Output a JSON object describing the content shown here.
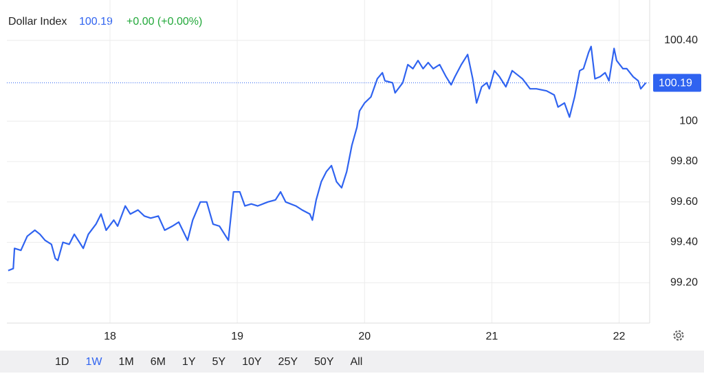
{
  "header": {
    "title": "Dollar Index",
    "change": "+0.00 (+0.00%)"
  },
  "chart_data": {
    "type": "line",
    "color": "#2f63f0",
    "current_value": 100.19,
    "x": [
      17.2,
      17.24,
      17.25,
      17.3,
      17.35,
      17.41,
      17.45,
      17.49,
      17.54,
      17.57,
      17.59,
      17.63,
      17.68,
      17.72,
      17.77,
      17.79,
      17.83,
      17.89,
      17.93,
      17.97,
      18.03,
      18.06,
      18.12,
      18.16,
      18.22,
      18.27,
      18.32,
      18.38,
      18.43,
      18.49,
      18.54,
      18.61,
      18.65,
      18.71,
      18.76,
      18.81,
      18.86,
      18.93,
      18.97,
      19.02,
      19.06,
      19.11,
      19.16,
      19.24,
      19.3,
      19.34,
      19.38,
      19.46,
      19.51,
      19.57,
      19.59,
      19.62,
      19.66,
      19.7,
      19.74,
      19.78,
      19.82,
      19.86,
      19.9,
      19.94,
      19.96,
      20.0,
      20.05,
      20.1,
      20.14,
      20.16,
      20.22,
      20.24,
      20.3,
      20.34,
      20.38,
      20.42,
      20.46,
      20.5,
      20.54,
      20.59,
      20.64,
      20.68,
      20.71,
      20.76,
      20.81,
      20.85,
      20.88,
      20.92,
      20.96,
      20.98,
      21.02,
      21.06,
      21.11,
      21.16,
      21.2,
      21.24,
      21.3,
      21.35,
      21.43,
      21.49,
      21.52,
      21.57,
      21.61,
      21.65,
      21.69,
      21.72,
      21.76,
      21.78,
      21.81,
      21.85,
      21.89,
      21.92,
      21.96,
      21.98,
      22.03,
      22.06,
      22.11,
      22.15,
      22.17,
      22.21
    ],
    "values": [
      99.26,
      99.27,
      99.37,
      99.36,
      99.43,
      99.46,
      99.44,
      99.41,
      99.39,
      99.32,
      99.31,
      99.4,
      99.39,
      99.44,
      99.39,
      99.37,
      99.44,
      99.49,
      99.54,
      99.46,
      99.51,
      99.48,
      99.58,
      99.54,
      99.56,
      99.53,
      99.52,
      99.53,
      99.46,
      99.48,
      99.5,
      99.41,
      99.51,
      99.6,
      99.6,
      99.49,
      99.48,
      99.41,
      99.65,
      99.65,
      99.58,
      99.59,
      99.58,
      99.6,
      99.61,
      99.65,
      99.6,
      99.58,
      99.56,
      99.54,
      99.51,
      99.61,
      99.7,
      99.75,
      99.78,
      99.7,
      99.67,
      99.75,
      99.88,
      99.97,
      100.05,
      100.09,
      100.12,
      100.21,
      100.24,
      100.2,
      100.19,
      100.14,
      100.19,
      100.28,
      100.26,
      100.3,
      100.26,
      100.29,
      100.26,
      100.28,
      100.22,
      100.18,
      100.22,
      100.28,
      100.33,
      100.21,
      100.09,
      100.17,
      100.19,
      100.16,
      100.25,
      100.22,
      100.17,
      100.25,
      100.23,
      100.21,
      100.16,
      100.16,
      100.15,
      100.13,
      100.07,
      100.09,
      100.02,
      100.12,
      100.25,
      100.26,
      100.34,
      100.37,
      100.21,
      100.22,
      100.24,
      100.2,
      100.36,
      100.3,
      100.26,
      100.26,
      100.22,
      100.2,
      100.16,
      100.19
    ],
    "xlim": [
      17.19,
      22.24
    ],
    "xticks": [
      18,
      19,
      20,
      21,
      22
    ],
    "ylim": [
      99.0,
      100.6
    ],
    "yticks": [
      {
        "value": 99.2,
        "label": "99.20"
      },
      {
        "value": 99.4,
        "label": "99.40"
      },
      {
        "value": 99.6,
        "label": "99.60"
      },
      {
        "value": 99.8,
        "label": "99.80"
      },
      100,
      {
        "value": 100.4,
        "label": "100.40"
      }
    ],
    "grid": true
  },
  "ranges": [
    "1D",
    "1W",
    "1M",
    "6M",
    "1Y",
    "5Y",
    "10Y",
    "25Y",
    "50Y",
    "All"
  ],
  "selected_range": "1W"
}
